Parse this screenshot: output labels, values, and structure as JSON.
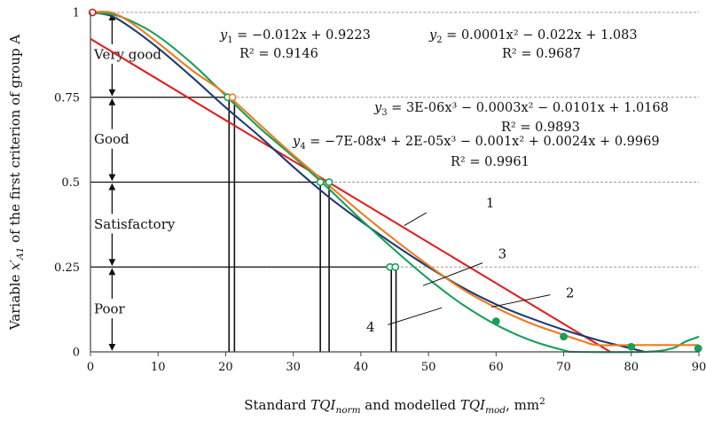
{
  "chart_data": {
    "type": "line",
    "title": "",
    "xlabel": "Standard TQI_norm and modelled TQI_mod, mm²",
    "xlabel_parts": {
      "pre": "Standard ",
      "v1": "TQI",
      "s1": "norm",
      "mid": " and modelled ",
      "v2": "TQI",
      "s2": "mod",
      "unit": ", mm",
      "sup": "2"
    },
    "ylabel": "Variable x'A1 of the first criterion of group A",
    "ylabel_parts": {
      "pre": "Variable ",
      "v": "x′",
      "s": "A1",
      "post": " of the first criterion of group A"
    },
    "xlim": [
      0,
      90
    ],
    "ylim": [
      0,
      1
    ],
    "xticks": [
      0,
      10,
      20,
      30,
      40,
      50,
      60,
      70,
      80,
      90
    ],
    "yticks": [
      "0",
      "0.25",
      "0.5",
      "0.75",
      "1"
    ],
    "ytick_values": [
      0,
      0.25,
      0.5,
      0.75,
      1
    ],
    "grid": "horizontal dashed gridlines",
    "legend": "none; curves are identified by numbered leader labels",
    "grades": [
      {
        "label": "Very good",
        "range": [
          0.75,
          1
        ]
      },
      {
        "label": "Good",
        "range": [
          0.5,
          0.75
        ]
      },
      {
        "label": "Satisfactory",
        "range": [
          0.25,
          0.5
        ]
      },
      {
        "label": "Poor",
        "range": [
          0,
          0.25
        ]
      }
    ],
    "series": [
      {
        "id": "1",
        "color": "#e02020",
        "equation": {
          "lhs": "y",
          "sub": "1",
          "rhs": " = −0.012x + 0.9223"
        },
        "r2": "R² = 0.9146",
        "points": [
          [
            0,
            0.9223
          ],
          [
            10,
            0.8023
          ],
          [
            20,
            0.6823
          ],
          [
            30,
            0.5623
          ],
          [
            40,
            0.4423
          ],
          [
            50,
            0.3223
          ],
          [
            60,
            0.2023
          ],
          [
            70,
            0.0823
          ],
          [
            76.9,
            0
          ]
        ]
      },
      {
        "id": "2",
        "color": "#ee7b1c",
        "equation": {
          "lhs": "y",
          "sub": "2",
          "rhs": " = 0.0001x² − 0.022x + 1.083"
        },
        "r2": "R² = 0.9687",
        "points": [
          [
            0,
            1
          ],
          [
            3,
            1
          ],
          [
            6,
            0.97
          ],
          [
            10,
            0.91
          ],
          [
            15,
            0.83
          ],
          [
            20,
            0.76
          ],
          [
            25,
            0.67
          ],
          [
            30,
            0.58
          ],
          [
            35,
            0.495
          ],
          [
            40,
            0.41
          ],
          [
            45,
            0.33
          ],
          [
            50,
            0.255
          ],
          [
            55,
            0.185
          ],
          [
            60,
            0.13
          ],
          [
            65,
            0.085
          ],
          [
            70,
            0.05
          ],
          [
            73,
            0.03
          ],
          [
            75,
            0.02
          ],
          [
            80,
            0.02
          ],
          [
            85,
            0.02
          ],
          [
            90,
            0.02
          ]
        ]
      },
      {
        "id": "3",
        "color": "#1f3b73",
        "equation": {
          "lhs": "y",
          "sub": "3",
          "rhs": " = 3E-06x³ − 0.0003x² − 0.0101x + 1.0168"
        },
        "r2": "R² = 0.9893",
        "points": [
          [
            0,
            1
          ],
          [
            3,
            0.99
          ],
          [
            6,
            0.955
          ],
          [
            10,
            0.895
          ],
          [
            15,
            0.81
          ],
          [
            20,
            0.72
          ],
          [
            25,
            0.635
          ],
          [
            30,
            0.545
          ],
          [
            35,
            0.46
          ],
          [
            40,
            0.385
          ],
          [
            45,
            0.315
          ],
          [
            50,
            0.25
          ],
          [
            55,
            0.19
          ],
          [
            60,
            0.14
          ],
          [
            65,
            0.1
          ],
          [
            70,
            0.065
          ],
          [
            75,
            0.035
          ],
          [
            80,
            0.01
          ],
          [
            82,
            0
          ]
        ]
      },
      {
        "id": "4",
        "color": "#16a05a",
        "equation": {
          "lhs": "y",
          "sub": "4",
          "rhs": " = −7E-08x⁴ + 2E-05x³ − 0.001x² + 0.0024x + 0.9969"
        },
        "r2": "R² = 0.9961",
        "points": [
          [
            0,
            0.997
          ],
          [
            3,
            0.995
          ],
          [
            6,
            0.975
          ],
          [
            10,
            0.93
          ],
          [
            15,
            0.85
          ],
          [
            20,
            0.755
          ],
          [
            25,
            0.66
          ],
          [
            30,
            0.575
          ],
          [
            35,
            0.485
          ],
          [
            40,
            0.39
          ],
          [
            45,
            0.3
          ],
          [
            50,
            0.215
          ],
          [
            55,
            0.14
          ],
          [
            60,
            0.08
          ],
          [
            65,
            0.035
          ],
          [
            70,
            0.005
          ],
          [
            72,
            0
          ],
          [
            82,
            0
          ],
          [
            86,
            0.01
          ],
          [
            88,
            0.03
          ],
          [
            90,
            0.045
          ]
        ]
      }
    ],
    "observed_points": [
      {
        "x": 0.3,
        "y": 1,
        "color": "#d7191c",
        "filled": false
      },
      {
        "x": 20.3,
        "y": 0.75,
        "color": "#16a05a",
        "filled": false
      },
      {
        "x": 21,
        "y": 0.75,
        "color": "#ee7b1c",
        "filled": false
      },
      {
        "x": 34,
        "y": 0.5,
        "color": "#16a05a",
        "filled": false
      },
      {
        "x": 35.3,
        "y": 0.5,
        "color": "#16a05a",
        "filled": false
      },
      {
        "x": 44.3,
        "y": 0.25,
        "color": "#16a05a",
        "filled": false
      },
      {
        "x": 45.1,
        "y": 0.25,
        "color": "#16a05a",
        "filled": false
      },
      {
        "x": 60,
        "y": 0.09,
        "color": "#16a05a",
        "filled": true
      },
      {
        "x": 70,
        "y": 0.045,
        "color": "#16a05a",
        "filled": true
      },
      {
        "x": 80,
        "y": 0.015,
        "color": "#16a05a",
        "filled": true
      },
      {
        "x": 89.9,
        "y": 0.01,
        "color": "#16a05a",
        "filled": true
      }
    ],
    "threshold_drops": [
      {
        "x": 20.5,
        "y": 0.75
      },
      {
        "x": 21.3,
        "y": 0.75
      },
      {
        "x": 34.0,
        "y": 0.5
      },
      {
        "x": 35.3,
        "y": 0.5
      },
      {
        "x": 44.5,
        "y": 0.25
      },
      {
        "x": 45.2,
        "y": 0.25
      }
    ]
  }
}
